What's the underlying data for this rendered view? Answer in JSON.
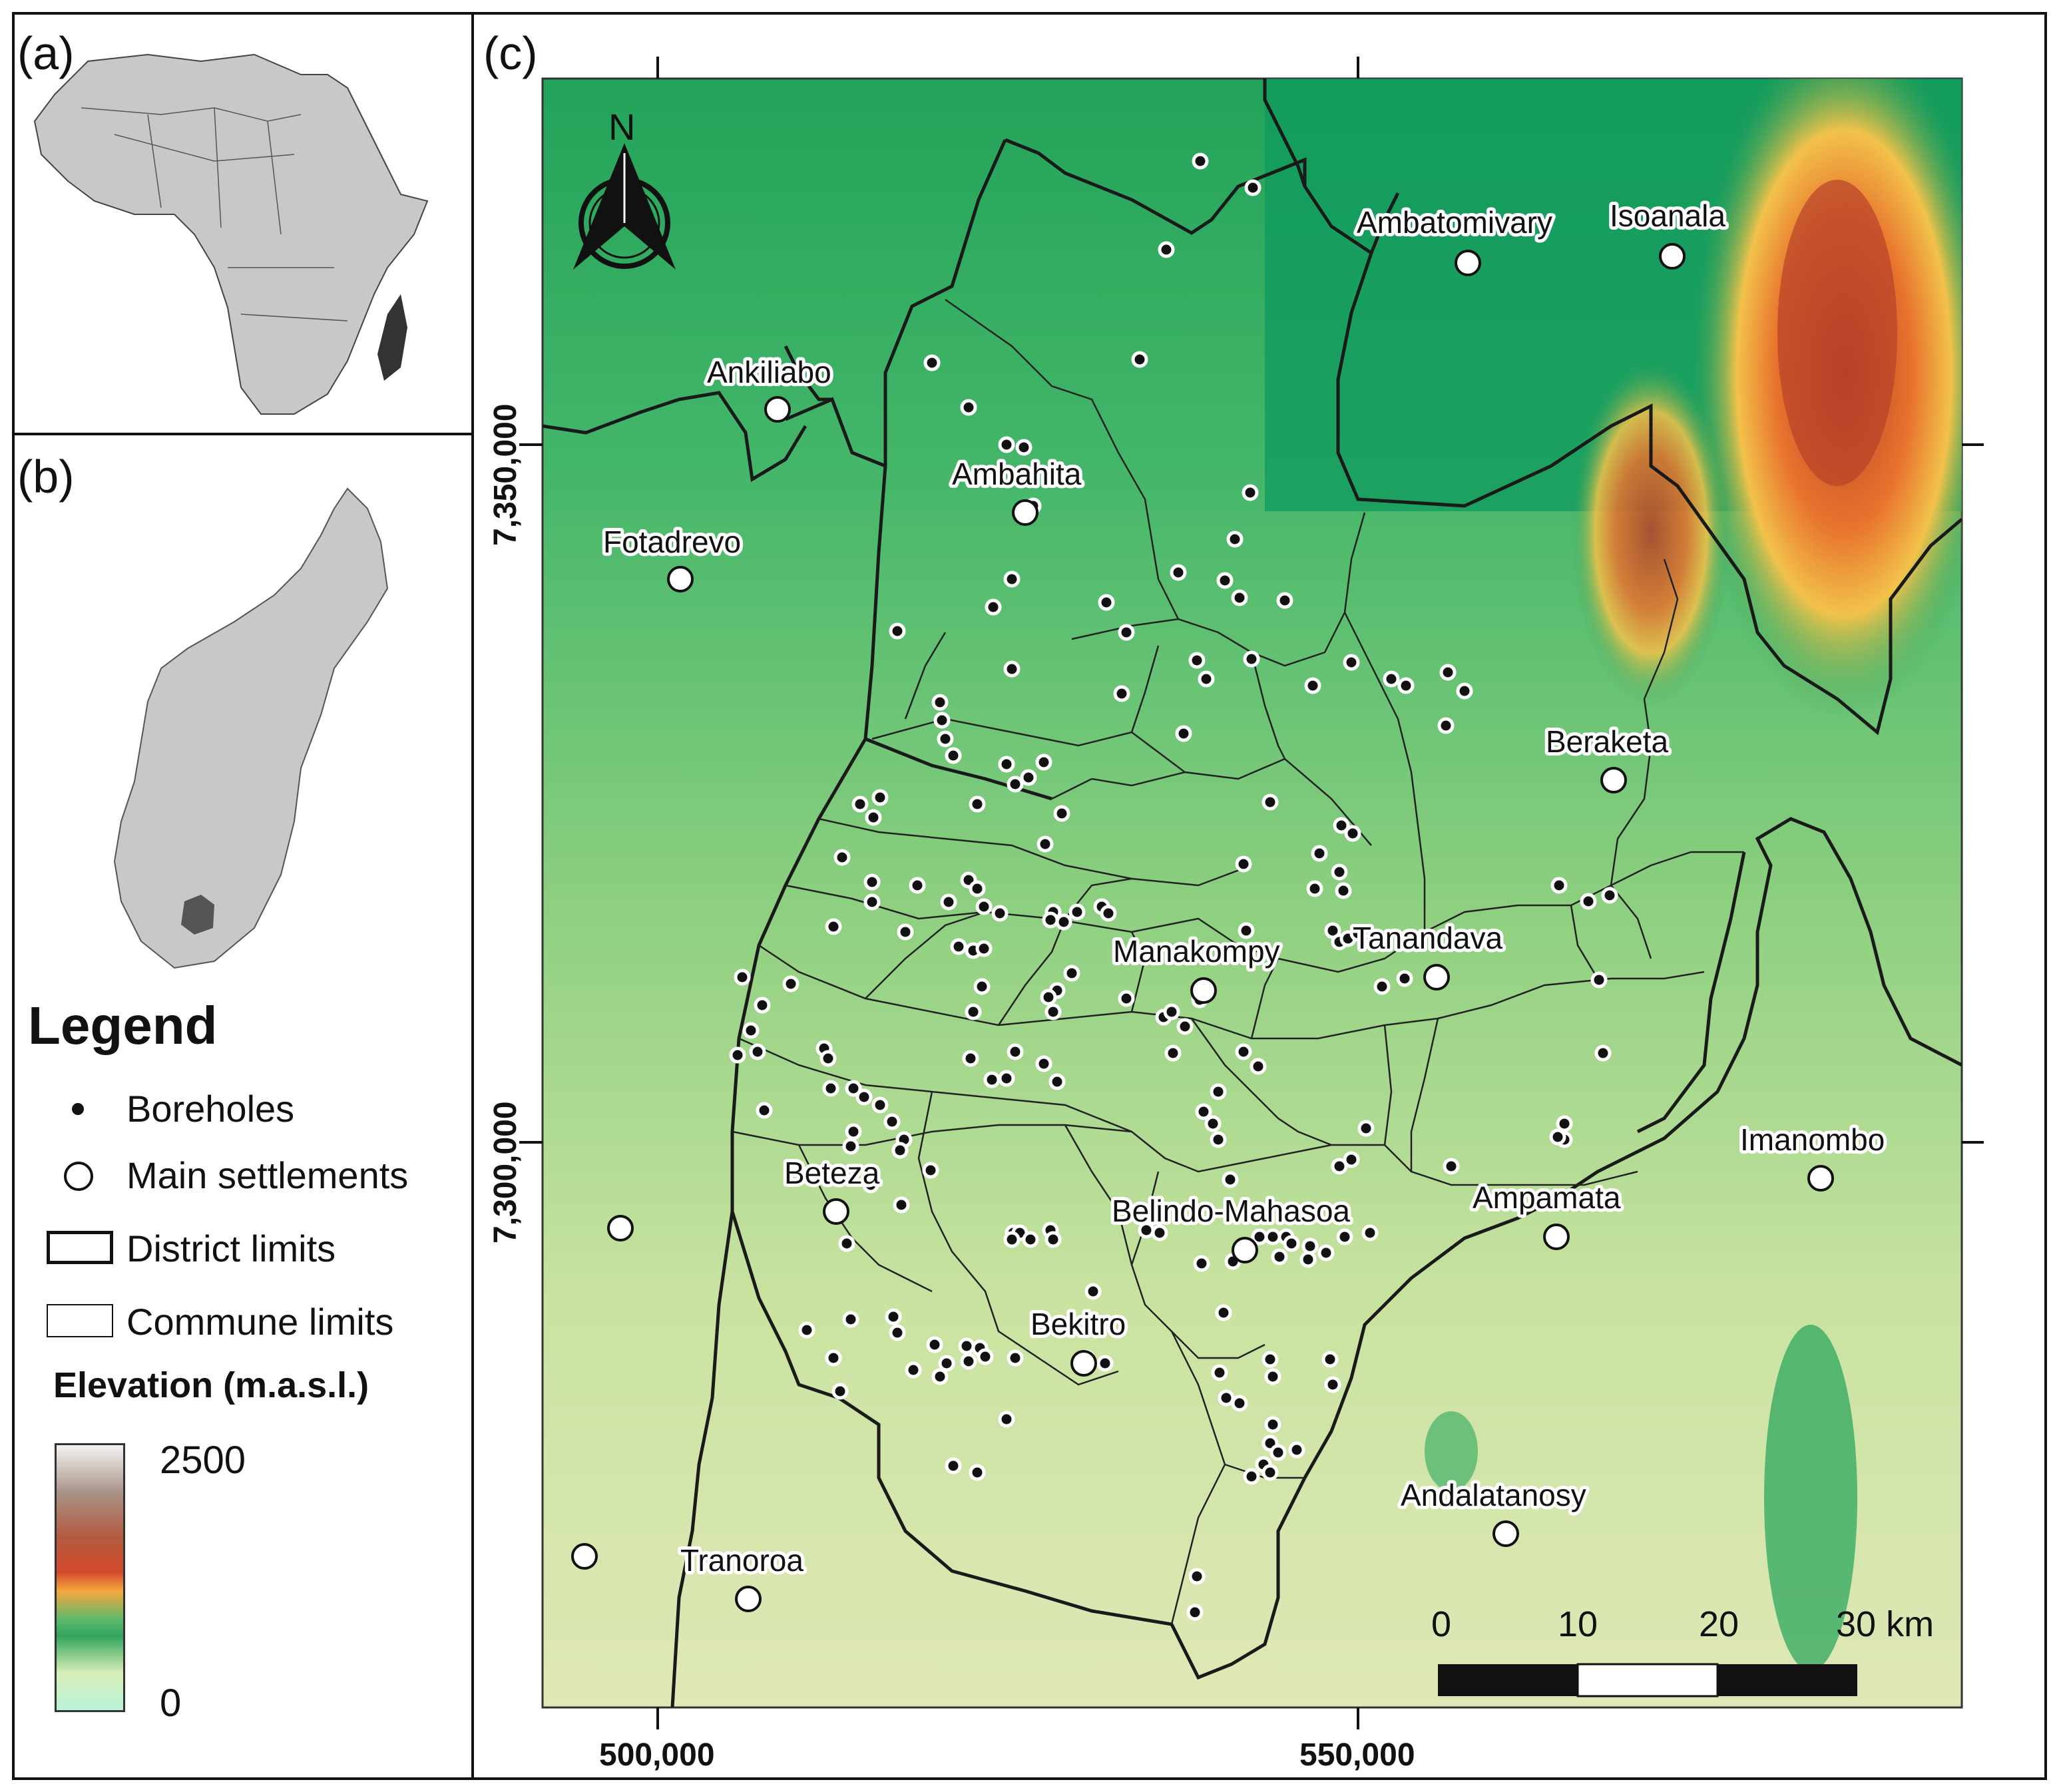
{
  "panels": {
    "a": {
      "label": "(a)"
    },
    "b": {
      "label": "(b)"
    },
    "c": {
      "label": "(c)"
    }
  },
  "legend": {
    "title": "Legend",
    "items": [
      {
        "label": "Boreholes",
        "symbol": "dot"
      },
      {
        "label": "Main settlements",
        "symbol": "circle"
      },
      {
        "label": "District limits",
        "symbol": "thick-box"
      },
      {
        "label": "Commune limits",
        "symbol": "thin-box"
      }
    ],
    "elevation_title": "Elevation (m.a.s.l.)",
    "elevation_max": "2500",
    "elevation_min": "0"
  },
  "map": {
    "north_label": "N",
    "x_ticks": [
      "500,000",
      "550,000"
    ],
    "y_ticks": [
      "7,350,000",
      "7,300,000"
    ],
    "scale_bar": {
      "labels": [
        "0",
        "10",
        "20",
        "30 km"
      ]
    },
    "settlements": [
      "Ambatomivary",
      "Isoanala",
      "Ankiliabo",
      "Ambahita",
      "Fotadrevo",
      "Beraketa",
      "Manakompy",
      "Tanandava",
      "Beteza",
      "Imanombo",
      "Ampamata",
      "Belindo-Mahasoa",
      "Bekitro",
      "Andalatanosy",
      "Tranoroa"
    ]
  },
  "colors": {
    "district": "#1a1a1a",
    "madagascar_highlight": "#333333",
    "land": "#c8c8c8",
    "study_area": "#555555"
  }
}
